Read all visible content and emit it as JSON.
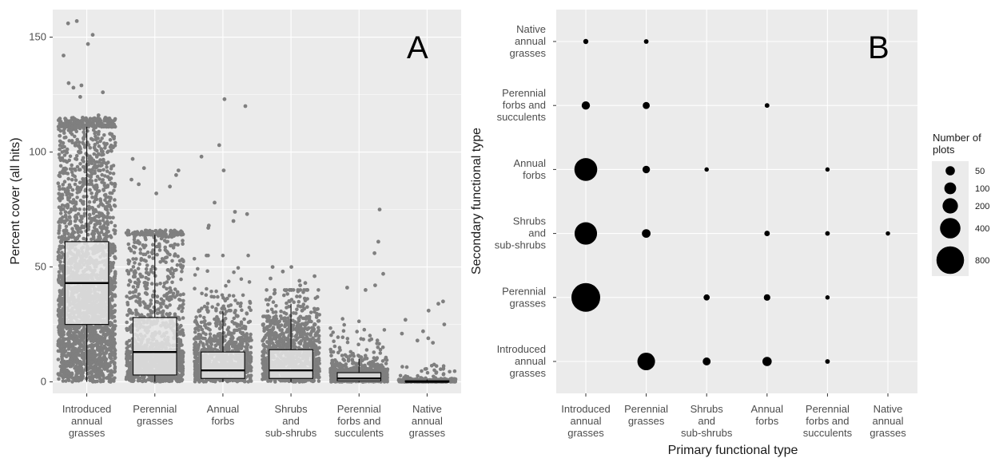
{
  "colors": {
    "panel_bg": "#ebebeb",
    "grid": "#ffffff",
    "jitter": "#7f7f7f",
    "box_fill": "#e6e6e6",
    "dot": "#000000"
  },
  "chart_data": [
    {
      "panel": "A",
      "type": "box",
      "ylabel": "Percent cover (all hits)",
      "xlabel": "",
      "ylim": [
        -5,
        162
      ],
      "yticks": [
        "0",
        "50",
        "100",
        "150"
      ],
      "categories": [
        [
          "Introduced",
          "annual",
          "grasses"
        ],
        [
          "Perennial",
          "grasses"
        ],
        [
          "Annual",
          "forbs"
        ],
        [
          "Shrubs",
          "and",
          "sub-shrubs"
        ],
        [
          "Perennial",
          "forbs and",
          "succulents"
        ],
        [
          "Native",
          "annual",
          "grasses"
        ]
      ],
      "boxes": [
        {
          "q1": 25,
          "median": 43,
          "q3": 61,
          "wlow": 0,
          "whigh": 111,
          "spread": 115,
          "n": 2600
        },
        {
          "q1": 3,
          "median": 13,
          "q3": 28,
          "wlow": 0,
          "whigh": 64,
          "spread": 66,
          "n": 1400
        },
        {
          "q1": 1.5,
          "median": 5,
          "q3": 13,
          "wlow": 0,
          "whigh": 31,
          "spread": 55,
          "n": 900
        },
        {
          "q1": 1.5,
          "median": 5,
          "q3": 14,
          "wlow": 0,
          "whigh": 34,
          "spread": 40,
          "n": 1000
        },
        {
          "q1": 0.5,
          "median": 1.5,
          "q3": 4,
          "wlow": 0,
          "whigh": 10,
          "spread": 30,
          "n": 700
        },
        {
          "q1": 0,
          "median": 0,
          "q3": 0.5,
          "wlow": 0,
          "whigh": 1,
          "spread": 12,
          "n": 350
        }
      ],
      "outliers": [
        [
          156,
          151,
          157,
          147,
          142,
          130,
          129,
          128,
          126,
          124,
          116,
          115
        ],
        [
          97,
          93,
          92,
          90,
          88,
          86,
          85,
          82
        ],
        [
          123,
          120,
          103,
          98,
          92,
          78,
          74,
          73,
          70,
          68,
          67
        ],
        [
          50,
          50,
          48,
          46,
          45,
          44,
          43,
          42
        ],
        [
          75,
          61,
          56,
          47,
          42,
          41,
          40
        ],
        [
          35,
          34,
          31,
          27,
          25,
          22,
          21,
          19,
          18,
          17
        ]
      ]
    },
    {
      "panel": "B",
      "type": "scatter",
      "xlabel": "Primary functional type",
      "ylabel": "Secondary functional type",
      "x_categories": [
        [
          "Introduced",
          "annual",
          "grasses"
        ],
        [
          "Perennial",
          "grasses"
        ],
        [
          "Shrubs",
          "and",
          "sub-shrubs"
        ],
        [
          "Annual",
          "forbs"
        ],
        [
          "Perennial",
          "forbs and",
          "succulents"
        ],
        [
          "Native",
          "annual",
          "grasses"
        ]
      ],
      "y_categories": [
        [
          "Introduced",
          "annual",
          "grasses"
        ],
        [
          "Perennial",
          "grasses"
        ],
        [
          "Shrubs",
          "and",
          "sub-shrubs"
        ],
        [
          "Annual",
          "forbs"
        ],
        [
          "Perennial",
          "forbs and",
          "succulents"
        ],
        [
          "Native",
          "annual",
          "grasses"
        ]
      ],
      "points": [
        {
          "x": 0,
          "y": 5,
          "n": 5
        },
        {
          "x": 1,
          "y": 5,
          "n": 3
        },
        {
          "x": 0,
          "y": 4,
          "n": 35
        },
        {
          "x": 1,
          "y": 4,
          "n": 20
        },
        {
          "x": 3,
          "y": 4,
          "n": 3
        },
        {
          "x": 0,
          "y": 3,
          "n": 520
        },
        {
          "x": 1,
          "y": 3,
          "n": 25
        },
        {
          "x": 2,
          "y": 3,
          "n": 2
        },
        {
          "x": 4,
          "y": 3,
          "n": 2
        },
        {
          "x": 0,
          "y": 2,
          "n": 500
        },
        {
          "x": 1,
          "y": 2,
          "n": 40
        },
        {
          "x": 3,
          "y": 2,
          "n": 7
        },
        {
          "x": 4,
          "y": 2,
          "n": 3
        },
        {
          "x": 5,
          "y": 2,
          "n": 2
        },
        {
          "x": 0,
          "y": 1,
          "n": 880
        },
        {
          "x": 2,
          "y": 1,
          "n": 12
        },
        {
          "x": 3,
          "y": 1,
          "n": 15
        },
        {
          "x": 4,
          "y": 1,
          "n": 2
        },
        {
          "x": 1,
          "y": 0,
          "n": 280
        },
        {
          "x": 2,
          "y": 0,
          "n": 30
        },
        {
          "x": 3,
          "y": 0,
          "n": 50
        },
        {
          "x": 4,
          "y": 0,
          "n": 3
        }
      ],
      "legend": {
        "title": [
          "Number of",
          "plots"
        ],
        "entries": [
          {
            "label": "50",
            "n": 50
          },
          {
            "label": "100",
            "n": 100
          },
          {
            "label": "200",
            "n": 200
          },
          {
            "label": "400",
            "n": 400
          },
          {
            "label": "800",
            "n": 800
          }
        ],
        "position": "right"
      }
    }
  ]
}
